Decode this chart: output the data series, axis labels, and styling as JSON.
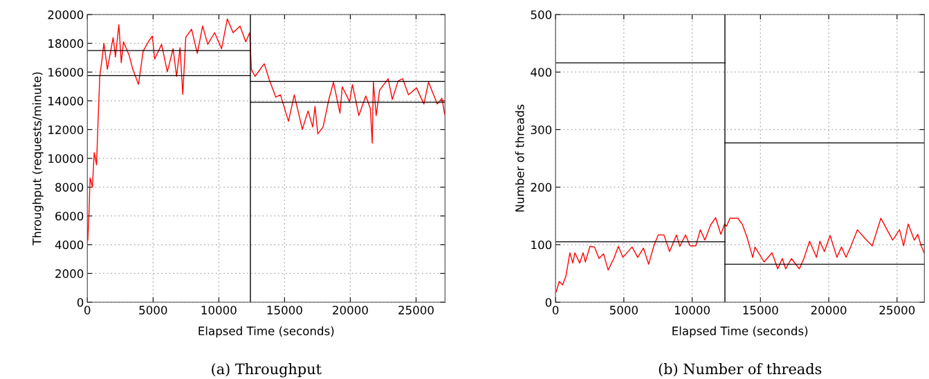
{
  "chart_data": [
    {
      "type": "line",
      "title": "(a) Throughput",
      "xlabel": "Elapsed Time (seconds)",
      "ylabel": "Throughput (requests/minute)",
      "xlim": [
        0,
        27200
      ],
      "ylim": [
        0,
        20000
      ],
      "xticks": [
        0,
        5000,
        10000,
        15000,
        20000,
        25000
      ],
      "yticks": [
        0,
        2000,
        4000,
        6000,
        8000,
        10000,
        12000,
        14000,
        16000,
        18000,
        20000
      ],
      "grid": true,
      "legend": false,
      "marker": "none",
      "line_style": "solid",
      "ref_lines": [
        {
          "axis": "x",
          "value": 12400,
          "color": "#000000"
        }
      ],
      "series": [
        {
          "color": "#ff0000",
          "x": [
            35,
            123,
            210,
            386,
            526,
            700,
            825,
            947,
            1087,
            1262,
            1525,
            1964,
            2139,
            2400,
            2580,
            2753,
            3190,
            3455,
            3893,
            4244,
            4683,
            4946,
            5120,
            5647,
            6085,
            6523,
            6787,
            7050,
            7260,
            7488,
            7927,
            8365,
            8770,
            9156,
            9682,
            10208,
            10647,
            11085,
            11611,
            12050,
            12348,
            12473,
            12754,
            13456,
            13807,
            14333,
            14684,
            15298,
            15737,
            16351,
            16789,
            17140,
            17316,
            17526,
            17930,
            18368,
            18719,
            19211,
            19386,
            19947,
            20158,
            20649,
            21175,
            21526,
            21667,
            21754,
            21965,
            22228,
            22877,
            23193,
            23632,
            23982,
            24421,
            25035,
            25596,
            25947,
            26614,
            26965,
            27175
          ],
          "values": [
            4300,
            6100,
            8650,
            8000,
            10400,
            9550,
            12800,
            15700,
            16650,
            18000,
            16200,
            18400,
            17050,
            19300,
            16650,
            18100,
            17140,
            16200,
            15150,
            17460,
            18170,
            18500,
            16900,
            17930,
            16020,
            17620,
            15700,
            17700,
            14450,
            18420,
            18980,
            17300,
            19200,
            17930,
            18740,
            17620,
            19700,
            18740,
            19200,
            18100,
            18740,
            16200,
            15700,
            16580,
            15540,
            14260,
            14420,
            12580,
            14420,
            12020,
            13300,
            12180,
            13620,
            11700,
            12180,
            14100,
            15300,
            13140,
            14980,
            13940,
            15140,
            12980,
            14340,
            13460,
            11060,
            15300,
            12980,
            14740,
            15540,
            14100,
            15380,
            15540,
            14420,
            14900,
            13780,
            15300,
            13780,
            14180,
            13060
          ]
        },
        {
          "color": "#000000",
          "x": [
            0,
            12400
          ],
          "values": [
            17500,
            17500
          ]
        },
        {
          "color": "#000000",
          "x": [
            0,
            12400
          ],
          "values": [
            15750,
            15750
          ]
        },
        {
          "color": "#000000",
          "x": [
            12400,
            27200
          ],
          "values": [
            15350,
            15350
          ]
        },
        {
          "color": "#000000",
          "x": [
            12400,
            27200
          ],
          "values": [
            13900,
            13900
          ]
        }
      ]
    },
    {
      "type": "line",
      "title": "(b) Number of threads",
      "xlabel": "Elapsed Time (seconds)",
      "ylabel": "Number of threads",
      "xlim": [
        0,
        27000
      ],
      "ylim": [
        0,
        500
      ],
      "xticks": [
        0,
        5000,
        10000,
        15000,
        20000,
        25000
      ],
      "yticks": [
        0,
        100,
        200,
        300,
        400,
        500
      ],
      "grid": true,
      "legend": false,
      "marker": "none",
      "line_style": "solid",
      "ref_lines": [
        {
          "axis": "x",
          "value": 12400,
          "color": "#000000"
        }
      ],
      "series": [
        {
          "color": "#ff0000",
          "x": [
            50,
            267,
            517,
            767,
            1050,
            1267,
            1417,
            1767,
            2017,
            2183,
            2517,
            2850,
            3183,
            3517,
            3850,
            4267,
            4600,
            4933,
            5600,
            6017,
            6433,
            6817,
            7183,
            7517,
            7933,
            8350,
            8850,
            9100,
            9517,
            9850,
            10267,
            10600,
            10933,
            11350,
            11717,
            12100,
            12383,
            12517,
            12767,
            13350,
            13683,
            14017,
            14433,
            14600,
            15267,
            15850,
            16267,
            16600,
            16850,
            17267,
            17850,
            18183,
            18600,
            19100,
            19350,
            19683,
            20100,
            20600,
            20933,
            21267,
            21600,
            22100,
            22683,
            23183,
            23817,
            24267,
            24683,
            25183,
            25483,
            25817,
            26267,
            26517,
            26767,
            26983
          ],
          "values": [
            18,
            36,
            30,
            46,
            86,
            68,
            86,
            68,
            86,
            70,
            97,
            96,
            76,
            84,
            56,
            76,
            97,
            78,
            96,
            78,
            94,
            66,
            97,
            117,
            117,
            88,
            117,
            97,
            117,
            98,
            98,
            126,
            108,
            134,
            147,
            118,
            136,
            132,
            146,
            146,
            135,
            113,
            78,
            96,
            70,
            86,
            58,
            76,
            58,
            76,
            58,
            76,
            106,
            78,
            106,
            88,
            116,
            78,
            96,
            78,
            96,
            126,
            110,
            98,
            146,
            126,
            108,
            126,
            98,
            136,
            108,
            118,
            98,
            86
          ]
        },
        {
          "color": "#000000",
          "x": [
            0,
            12400
          ],
          "values": [
            416,
            416
          ]
        },
        {
          "color": "#000000",
          "x": [
            0,
            12400
          ],
          "values": [
            105,
            105
          ]
        },
        {
          "color": "#000000",
          "x": [
            12400,
            27000
          ],
          "values": [
            277,
            277
          ]
        },
        {
          "color": "#000000",
          "x": [
            12400,
            27000
          ],
          "values": [
            66,
            66
          ]
        }
      ]
    }
  ]
}
